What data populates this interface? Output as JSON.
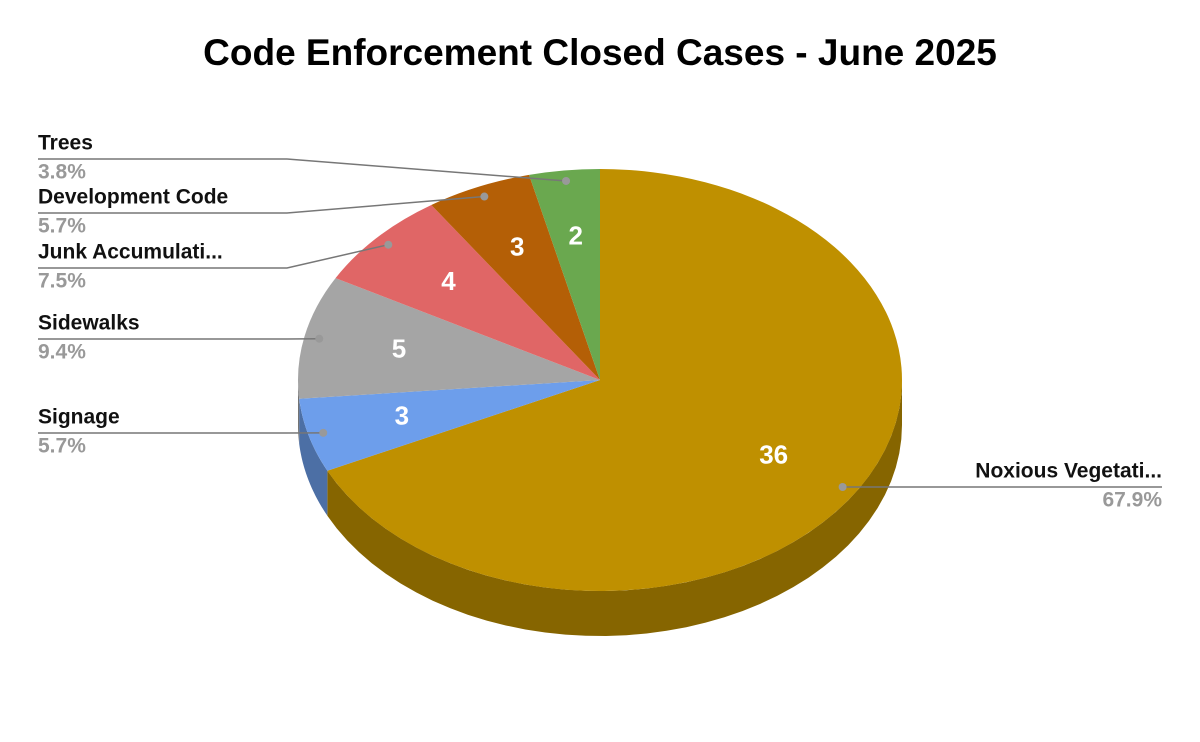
{
  "chart_data": {
    "type": "pie",
    "title": "Code Enforcement Closed Cases - June 2025",
    "categories": [
      "Noxious Vegetati...",
      "Signage",
      "Sidewalks",
      "Junk Accumulati...",
      "Development Code",
      "Trees"
    ],
    "values": [
      36,
      3,
      5,
      4,
      3,
      2
    ],
    "percentages": [
      67.9,
      5.7,
      9.4,
      7.5,
      5.7,
      3.8
    ],
    "percentage_labels": [
      "67.9%",
      "5.7%",
      "9.4%",
      "7.5%",
      "5.7%",
      "3.8%"
    ],
    "colors": [
      "#bf9000",
      "#6d9eeb",
      "#a5a5a5",
      "#e06666",
      "#b45f06",
      "#6aa84f"
    ],
    "three_d": true
  }
}
